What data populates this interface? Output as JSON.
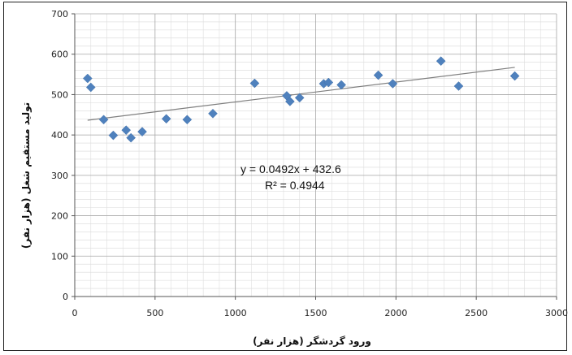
{
  "chart_data": {
    "type": "scatter",
    "xlabel": "ورود گردشگر (هزار نفر)",
    "ylabel": "تولید مستقیم شغل (هزار نفر)",
    "xlim": [
      0,
      3000
    ],
    "ylim": [
      0,
      700
    ],
    "xticks": [
      0,
      500,
      1000,
      1500,
      2000,
      2500,
      3000
    ],
    "yticks": [
      0,
      100,
      200,
      300,
      400,
      500,
      600,
      700
    ],
    "grid": true,
    "marker_color": "#4f81bd",
    "trendline_color": "#7f7f7f",
    "points": [
      {
        "x": 80,
        "y": 540
      },
      {
        "x": 100,
        "y": 518
      },
      {
        "x": 180,
        "y": 438
      },
      {
        "x": 240,
        "y": 399
      },
      {
        "x": 320,
        "y": 412
      },
      {
        "x": 350,
        "y": 393
      },
      {
        "x": 420,
        "y": 408
      },
      {
        "x": 570,
        "y": 440
      },
      {
        "x": 700,
        "y": 438
      },
      {
        "x": 860,
        "y": 453
      },
      {
        "x": 1120,
        "y": 528
      },
      {
        "x": 1320,
        "y": 497
      },
      {
        "x": 1340,
        "y": 483
      },
      {
        "x": 1400,
        "y": 492
      },
      {
        "x": 1550,
        "y": 527
      },
      {
        "x": 1580,
        "y": 530
      },
      {
        "x": 1660,
        "y": 524
      },
      {
        "x": 1890,
        "y": 548
      },
      {
        "x": 1980,
        "y": 527
      },
      {
        "x": 2280,
        "y": 583
      },
      {
        "x": 2390,
        "y": 521
      },
      {
        "x": 2740,
        "y": 546
      }
    ],
    "trendline": {
      "slope": 0.0492,
      "intercept": 432.6,
      "x_start": 80,
      "x_end": 2740
    },
    "annotations": {
      "equation": "y = 0.0492x + 432.6",
      "r_squared": "R² = 0.4944"
    }
  }
}
